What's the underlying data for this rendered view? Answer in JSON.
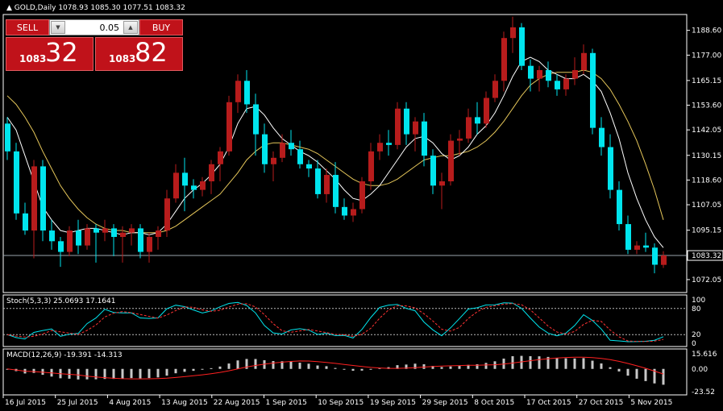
{
  "chart_header": {
    "symbol": "GOLD,Daily",
    "open": "1078.93",
    "high": "1085.30",
    "low": "1077.51",
    "close": "1083.32"
  },
  "trade_panel": {
    "sell_label": "SELL",
    "buy_label": "BUY",
    "lot_value": "0.05",
    "sell_price_prefix": "1083",
    "sell_price_big": "32",
    "buy_price_prefix": "1083",
    "buy_price_big": "82"
  },
  "price_axis": [
    "1188.60",
    "1177.00",
    "1165.15",
    "1153.60",
    "1142.05",
    "1130.15",
    "1118.60",
    "1107.05",
    "1095.15",
    "1083.32",
    "1072.05"
  ],
  "current_price": 1083.32,
  "stoch": {
    "label": "Stoch(5,3,3) 25.0693 17.1641",
    "ticks": [
      "100",
      "80",
      "20",
      "0"
    ],
    "levels": [
      80,
      20
    ]
  },
  "macd": {
    "label": "MACD(12,26,9) -19.391 -14.313",
    "ticks": [
      "15.616",
      "0.00",
      "-23.52"
    ]
  },
  "time_axis": [
    "16 Jul 2015",
    "25 Jul 2015",
    "4 Aug 2015",
    "13 Aug 2015",
    "22 Aug 2015",
    "1 Sep 2015",
    "10 Sep 2015",
    "19 Sep 2015",
    "29 Sep 2015",
    "8 Oct 2015",
    "17 Oct 2015",
    "27 Oct 2015",
    "5 Nov 2015"
  ],
  "colors": {
    "bull": "#b71c1c",
    "bear": "#00e5ee",
    "ma_fast": "#ffffff",
    "ma_slow": "#e6c75a",
    "stoch_main": "#00e5ee",
    "stoch_signal": "#ff3333",
    "macd_hist": "#c8c8c8",
    "macd_signal": "#ff2020",
    "frame": "#ffffff"
  },
  "chart_data": {
    "type": "candlestick",
    "y_range": [
      1066,
      1196
    ],
    "candles": [
      [
        1145,
        1148,
        1128,
        1132
      ],
      [
        1132,
        1136,
        1100,
        1103
      ],
      [
        1103,
        1108,
        1093,
        1095
      ],
      [
        1095,
        1128,
        1082,
        1125
      ],
      [
        1125,
        1128,
        1090,
        1095
      ],
      [
        1095,
        1100,
        1086,
        1090
      ],
      [
        1090,
        1092,
        1078,
        1085
      ],
      [
        1085,
        1097,
        1083,
        1095
      ],
      [
        1095,
        1100,
        1084,
        1088
      ],
      [
        1088,
        1098,
        1086,
        1096
      ],
      [
        1096,
        1098,
        1080,
        1094
      ],
      [
        1094,
        1100,
        1090,
        1096
      ],
      [
        1096,
        1098,
        1083,
        1092
      ],
      [
        1092,
        1097,
        1080,
        1094
      ],
      [
        1094,
        1098,
        1088,
        1096
      ],
      [
        1096,
        1098,
        1082,
        1085
      ],
      [
        1085,
        1094,
        1080,
        1092
      ],
      [
        1092,
        1097,
        1086,
        1095
      ],
      [
        1095,
        1114,
        1092,
        1110
      ],
      [
        1110,
        1126,
        1108,
        1122
      ],
      [
        1122,
        1129,
        1104,
        1116
      ],
      [
        1116,
        1119,
        1110,
        1114
      ],
      [
        1114,
        1120,
        1111,
        1118
      ],
      [
        1118,
        1128,
        1112,
        1126
      ],
      [
        1126,
        1134,
        1118,
        1132
      ],
      [
        1132,
        1158,
        1130,
        1155
      ],
      [
        1155,
        1168,
        1150,
        1165
      ],
      [
        1165,
        1170,
        1150,
        1154
      ],
      [
        1154,
        1159,
        1130,
        1140
      ],
      [
        1140,
        1145,
        1122,
        1126
      ],
      [
        1126,
        1132,
        1118,
        1129
      ],
      [
        1129,
        1140,
        1127,
        1136
      ],
      [
        1136,
        1142,
        1130,
        1133
      ],
      [
        1133,
        1137,
        1124,
        1126
      ],
      [
        1126,
        1128,
        1120,
        1124
      ],
      [
        1124,
        1128,
        1110,
        1112
      ],
      [
        1112,
        1124,
        1108,
        1121
      ],
      [
        1121,
        1127,
        1103,
        1106
      ],
      [
        1106,
        1110,
        1100,
        1102
      ],
      [
        1102,
        1108,
        1099,
        1105
      ],
      [
        1105,
        1120,
        1103,
        1118
      ],
      [
        1118,
        1136,
        1114,
        1132
      ],
      [
        1132,
        1140,
        1128,
        1136
      ],
      [
        1136,
        1142,
        1130,
        1135
      ],
      [
        1135,
        1155,
        1133,
        1152
      ],
      [
        1152,
        1155,
        1135,
        1140
      ],
      [
        1140,
        1148,
        1132,
        1146
      ],
      [
        1146,
        1150,
        1125,
        1130
      ],
      [
        1130,
        1133,
        1112,
        1116
      ],
      [
        1116,
        1122,
        1105,
        1118
      ],
      [
        1118,
        1140,
        1116,
        1137
      ],
      [
        1137,
        1142,
        1130,
        1138
      ],
      [
        1138,
        1152,
        1136,
        1148
      ],
      [
        1148,
        1155,
        1140,
        1145
      ],
      [
        1145,
        1160,
        1143,
        1157
      ],
      [
        1157,
        1168,
        1155,
        1165
      ],
      [
        1165,
        1188,
        1160,
        1185
      ],
      [
        1185,
        1195,
        1178,
        1190
      ],
      [
        1190,
        1192,
        1170,
        1172
      ],
      [
        1172,
        1175,
        1160,
        1166
      ],
      [
        1166,
        1172,
        1160,
        1170
      ],
      [
        1170,
        1174,
        1162,
        1165
      ],
      [
        1165,
        1168,
        1158,
        1161
      ],
      [
        1161,
        1168,
        1158,
        1166
      ],
      [
        1166,
        1176,
        1163,
        1170
      ],
      [
        1170,
        1182,
        1168,
        1178
      ],
      [
        1178,
        1180,
        1140,
        1143
      ],
      [
        1143,
        1148,
        1130,
        1134
      ],
      [
        1134,
        1140,
        1110,
        1114
      ],
      [
        1114,
        1118,
        1095,
        1098
      ],
      [
        1098,
        1102,
        1084,
        1086
      ],
      [
        1086,
        1090,
        1084,
        1088
      ],
      [
        1088,
        1094,
        1085,
        1087
      ],
      [
        1087,
        1089,
        1075,
        1079
      ],
      [
        1078.93,
        1085.3,
        1077.51,
        1083.32
      ]
    ],
    "ma_fast": [
      1148,
      1142,
      1130,
      1118,
      1106,
      1100,
      1095,
      1094,
      1095,
      1096,
      1096,
      1095,
      1094,
      1093,
      1094,
      1094,
      1093,
      1094,
      1098,
      1104,
      1110,
      1114,
      1117,
      1121,
      1126,
      1134,
      1145,
      1152,
      1153,
      1149,
      1143,
      1138,
      1135,
      1132,
      1130,
      1127,
      1123,
      1119,
      1114,
      1110,
      1109,
      1112,
      1116,
      1122,
      1128,
      1134,
      1138,
      1139,
      1136,
      1131,
      1128,
      1130,
      1134,
      1140,
      1144,
      1150,
      1158,
      1167,
      1174,
      1176,
      1174,
      1170,
      1168,
      1166,
      1166,
      1168,
      1165,
      1160,
      1150,
      1138,
      1122,
      1110,
      1100,
      1092,
      1087
    ],
    "ma_slow": [
      1158,
      1154,
      1148,
      1141,
      1132,
      1124,
      1116,
      1110,
      1105,
      1101,
      1098,
      1096,
      1095,
      1095,
      1094,
      1094,
      1094,
      1094,
      1095,
      1097,
      1100,
      1103,
      1106,
      1109,
      1112,
      1117,
      1122,
      1128,
      1132,
      1135,
      1136,
      1136,
      1135,
      1134,
      1133,
      1131,
      1128,
      1125,
      1122,
      1119,
      1117,
      1116,
      1116,
      1117,
      1119,
      1122,
      1125,
      1128,
      1129,
      1130,
      1130,
      1131,
      1132,
      1134,
      1137,
      1141,
      1146,
      1152,
      1158,
      1163,
      1166,
      1168,
      1169,
      1169,
      1169,
      1170,
      1169,
      1166,
      1161,
      1154,
      1146,
      1137,
      1126,
      1114,
      1100
    ]
  }
}
